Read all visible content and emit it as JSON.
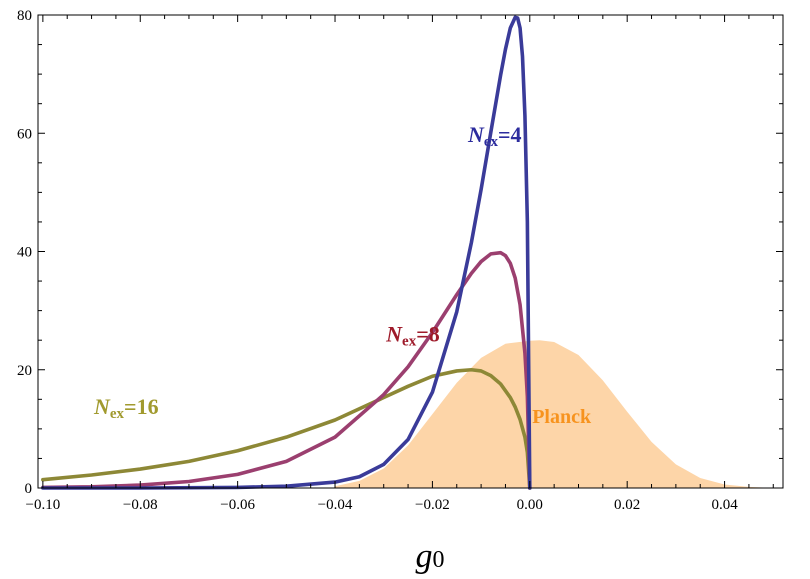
{
  "chart_data": {
    "type": "line",
    "title": "",
    "xlabel": {
      "base": "g",
      "sub": "0"
    },
    "ylabel": "",
    "xlim": [
      -0.101,
      0.052
    ],
    "ylim": [
      0,
      80
    ],
    "grid": false,
    "legend": "none",
    "x_ticks": [
      {
        "value": -0.1,
        "label": "−0.10"
      },
      {
        "value": -0.08,
        "label": "−0.08"
      },
      {
        "value": -0.06,
        "label": "−0.06"
      },
      {
        "value": -0.04,
        "label": "−0.04"
      },
      {
        "value": -0.02,
        "label": "−0.02"
      },
      {
        "value": 0.0,
        "label": "0.00"
      },
      {
        "value": 0.02,
        "label": "0.02"
      },
      {
        "value": 0.04,
        "label": "0.04"
      }
    ],
    "y_ticks": [
      {
        "value": 0,
        "label": "0"
      },
      {
        "value": 20,
        "label": "20"
      },
      {
        "value": 40,
        "label": "40"
      },
      {
        "value": 60,
        "label": "60"
      },
      {
        "value": 80,
        "label": "80"
      }
    ],
    "band": {
      "name": "Planck",
      "color": "#fdd5a8",
      "label_color": "#f7931e",
      "label_at": [
        0.0005,
        11
      ],
      "x": [
        -0.04,
        -0.035,
        -0.03,
        -0.025,
        -0.02,
        -0.015,
        -0.01,
        -0.005,
        0.0,
        0.002,
        0.005,
        0.01,
        0.015,
        0.02,
        0.025,
        0.03,
        0.035,
        0.04,
        0.045,
        0.05
      ],
      "y": [
        0.3,
        1.2,
        3.3,
        7.2,
        12.5,
        17.8,
        22.0,
        24.4,
        24.9,
        25.0,
        24.7,
        22.5,
        18.2,
        12.9,
        7.8,
        4.0,
        1.7,
        0.6,
        0.2,
        0.0
      ]
    },
    "series": [
      {
        "name": {
          "base": "N",
          "sub": "ex",
          "suffix": "=16"
        },
        "color": "#8d8836",
        "label_color": "#a19a2e",
        "label_at": [
          -0.0895,
          12.5
        ],
        "x": [
          -0.1,
          -0.09,
          -0.08,
          -0.07,
          -0.06,
          -0.05,
          -0.04,
          -0.03,
          -0.025,
          -0.02,
          -0.015,
          -0.012,
          -0.01,
          -0.008,
          -0.006,
          -0.004,
          -0.003,
          -0.002,
          -0.001,
          -0.0005,
          0.0
        ],
        "y": [
          1.4,
          2.2,
          3.2,
          4.5,
          6.3,
          8.6,
          11.5,
          15.3,
          17.2,
          18.9,
          19.8,
          20.0,
          19.8,
          19.0,
          17.6,
          15.3,
          13.7,
          11.6,
          8.6,
          6.0,
          0.0
        ]
      },
      {
        "name": {
          "base": "N",
          "sub": "ex",
          "suffix": "=8"
        },
        "color": "#9b3f6f",
        "label_color": "#9e1a2a",
        "label_at": [
          -0.0295,
          24.8
        ],
        "x": [
          -0.1,
          -0.09,
          -0.08,
          -0.07,
          -0.06,
          -0.05,
          -0.04,
          -0.03,
          -0.025,
          -0.02,
          -0.015,
          -0.012,
          -0.01,
          -0.008,
          -0.006,
          -0.005,
          -0.004,
          -0.003,
          -0.002,
          -0.001,
          -0.0005,
          0.0
        ],
        "y": [
          0.1,
          0.2,
          0.5,
          1.1,
          2.3,
          4.5,
          8.6,
          15.8,
          20.5,
          26.3,
          32.7,
          36.3,
          38.3,
          39.6,
          39.8,
          39.3,
          38.0,
          35.5,
          31.0,
          22.8,
          15.5,
          0.0
        ]
      },
      {
        "name": {
          "base": "N",
          "sub": "ex",
          "suffix": "=4"
        },
        "color": "#3a3b99",
        "label_color": "#2c2c9e",
        "label_at": [
          -0.0127,
          58.5
        ],
        "x": [
          -0.1,
          -0.08,
          -0.06,
          -0.05,
          -0.04,
          -0.035,
          -0.03,
          -0.025,
          -0.02,
          -0.015,
          -0.012,
          -0.01,
          -0.008,
          -0.006,
          -0.005,
          -0.004,
          -0.003,
          -0.0025,
          -0.002,
          -0.0015,
          -0.001,
          -0.0005,
          0.0
        ],
        "y": [
          0.0,
          0.0,
          0.1,
          0.3,
          1.0,
          1.9,
          4.0,
          8.2,
          16.2,
          29.8,
          41.5,
          50.5,
          60.2,
          69.8,
          74.2,
          77.8,
          79.6,
          79.5,
          77.8,
          73.0,
          63.0,
          45.0,
          0.0
        ]
      }
    ]
  }
}
